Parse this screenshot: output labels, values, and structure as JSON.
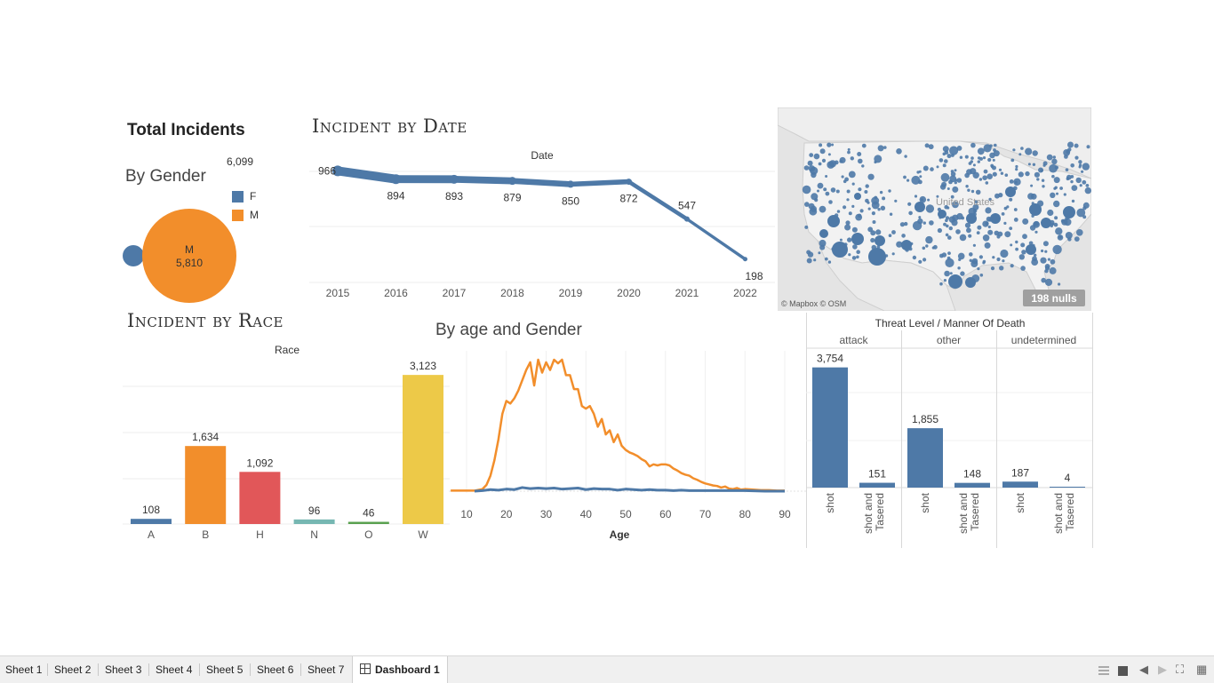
{
  "dashboard": {
    "total_title": "Total Incidents",
    "total_value": "6,099",
    "by_gender_title": "By Gender",
    "by_date_title": "Incident by Date",
    "by_race_title": "Incident by Race",
    "by_age_title": "By age and Gender"
  },
  "colors": {
    "blue": "#4e79a7",
    "orange": "#f28e2b",
    "red": "#e15759",
    "teal": "#76b7b2",
    "green": "#59a14f",
    "yellow": "#edc948"
  },
  "legend": [
    {
      "label": "F",
      "color": "#4e79a7"
    },
    {
      "label": "M",
      "color": "#f28e2b"
    }
  ],
  "gender_chart": {
    "type": "bubble",
    "items": [
      {
        "label": "F",
        "value": 289,
        "value_label": "",
        "color": "#4e79a7"
      },
      {
        "label": "M",
        "value": 5810,
        "value_label": "5,810",
        "color": "#f28e2b"
      }
    ]
  },
  "date_chart": {
    "type": "line",
    "header": "Date",
    "x": [
      "2015",
      "2016",
      "2017",
      "2018",
      "2019",
      "2020",
      "2021",
      "2022"
    ],
    "values": [
      966,
      894,
      893,
      879,
      850,
      872,
      547,
      198
    ],
    "labels": [
      "966",
      "894",
      "893",
      "879",
      "850",
      "872",
      "547",
      "198"
    ]
  },
  "race_chart": {
    "type": "bar",
    "header": "Race",
    "categories": [
      "A",
      "B",
      "H",
      "N",
      "O",
      "W"
    ],
    "values": [
      108,
      1634,
      1092,
      96,
      46,
      3123
    ],
    "labels": [
      "108",
      "1,634",
      "1,092",
      "96",
      "46",
      "3,123"
    ],
    "colors": [
      "#4e79a7",
      "#f28e2b",
      "#e15759",
      "#76b7b2",
      "#59a14f",
      "#edc948"
    ]
  },
  "age_chart": {
    "type": "line",
    "xlabel": "Age",
    "xticks": [
      "10",
      "20",
      "30",
      "40",
      "50",
      "60",
      "70",
      "80",
      "90"
    ],
    "series": [
      {
        "color": "#f28e2b",
        "x": [
          6,
          12,
          14,
          15,
          16,
          17,
          18,
          19,
          20,
          21,
          22,
          23,
          24,
          25,
          26,
          27,
          28,
          29,
          30,
          31,
          32,
          33,
          34,
          35,
          36,
          37,
          38,
          39,
          40,
          41,
          42,
          43,
          44,
          45,
          46,
          47,
          48,
          49,
          50,
          51,
          52,
          53,
          54,
          55,
          56,
          57,
          58,
          59,
          60,
          61,
          62,
          63,
          64,
          65,
          66,
          67,
          68,
          69,
          70,
          71,
          72,
          73,
          74,
          75,
          76,
          77,
          78,
          79,
          80,
          82,
          84,
          86,
          88,
          90
        ],
        "values": [
          1,
          1,
          4,
          12,
          30,
          60,
          100,
          150,
          175,
          170,
          180,
          195,
          215,
          235,
          250,
          205,
          255,
          230,
          250,
          235,
          255,
          248,
          255,
          225,
          225,
          198,
          198,
          165,
          160,
          165,
          150,
          125,
          140,
          110,
          118,
          95,
          110,
          88,
          80,
          75,
          72,
          68,
          62,
          58,
          48,
          52,
          50,
          52,
          52,
          50,
          44,
          40,
          35,
          32,
          30,
          25,
          22,
          18,
          15,
          13,
          11,
          10,
          7,
          9,
          5,
          4,
          6,
          3,
          4,
          3,
          2,
          2,
          1,
          1
        ]
      },
      {
        "color": "#4e79a7",
        "x": [
          12,
          14,
          16,
          18,
          20,
          22,
          24,
          26,
          28,
          30,
          32,
          34,
          36,
          38,
          40,
          42,
          44,
          46,
          48,
          50,
          52,
          54,
          56,
          58,
          60,
          62,
          64,
          66,
          68,
          70,
          75,
          80,
          85,
          90
        ],
        "values": [
          0,
          1,
          3,
          2,
          4,
          3,
          7,
          5,
          6,
          5,
          6,
          4,
          5,
          6,
          3,
          5,
          4,
          4,
          2,
          4,
          3,
          2,
          3,
          2,
          2,
          1,
          2,
          1,
          1,
          1,
          1,
          1,
          0,
          0
        ]
      }
    ]
  },
  "threat_chart": {
    "type": "bar",
    "title": "Threat Level / Manner Of Death",
    "panels": [
      {
        "name": "attack",
        "bars": [
          {
            "label": "shot",
            "value": 3754,
            "value_label": "3,754"
          },
          {
            "label": "shot and Tasered",
            "value": 151,
            "value_label": "151"
          }
        ]
      },
      {
        "name": "other",
        "bars": [
          {
            "label": "shot",
            "value": 1855,
            "value_label": "1,855"
          },
          {
            "label": "shot and Tasered",
            "value": 148,
            "value_label": "148"
          }
        ]
      },
      {
        "name": "undetermined",
        "bars": [
          {
            "label": "shot",
            "value": 187,
            "value_label": "187"
          },
          {
            "label": "shot and Tasered",
            "value": 4,
            "value_label": "4"
          }
        ]
      }
    ]
  },
  "chart_data": [
    {
      "type": "line",
      "title": "Incident by Date",
      "xlabel": "Date",
      "x": [
        "2015",
        "2016",
        "2017",
        "2018",
        "2019",
        "2020",
        "2021",
        "2022"
      ],
      "values": [
        966,
        894,
        893,
        879,
        850,
        872,
        547,
        198
      ]
    },
    {
      "type": "bar",
      "title": "Incident by Race",
      "xlabel": "Race",
      "categories": [
        "A",
        "B",
        "H",
        "N",
        "O",
        "W"
      ],
      "values": [
        108,
        1634,
        1092,
        96,
        46,
        3123
      ]
    },
    {
      "type": "line",
      "title": "By age and Gender",
      "xlabel": "Age",
      "series": [
        {
          "name": "M"
        },
        {
          "name": "F"
        }
      ]
    },
    {
      "type": "bar",
      "title": "Threat Level / Manner Of Death",
      "categories": [
        "attack",
        "other",
        "undetermined"
      ],
      "series": [
        {
          "name": "shot",
          "values": [
            3754,
            1855,
            187
          ]
        },
        {
          "name": "shot and Tasered",
          "values": [
            151,
            148,
            4
          ]
        }
      ]
    }
  ],
  "map": {
    "region_label": "United States",
    "attribution": "© Mapbox © OSM",
    "nulls_badge": "198 nulls"
  },
  "tabs": [
    {
      "label": "Sheet 1"
    },
    {
      "label": "Sheet 2"
    },
    {
      "label": "Sheet 3"
    },
    {
      "label": "Sheet 4"
    },
    {
      "label": "Sheet 5"
    },
    {
      "label": "Sheet 6"
    },
    {
      "label": "Sheet 7"
    },
    {
      "label": "Dashboard 1",
      "active": true
    }
  ],
  "controls": {
    "tile_icon": "grid-view-icon",
    "single_icon": "single-view-icon",
    "prev_icon": "prev-arrow-icon",
    "next_icon": "next-arrow-icon",
    "fit_icon": "fit-screen-icon",
    "grid_icon": "show-sheets-icon"
  }
}
